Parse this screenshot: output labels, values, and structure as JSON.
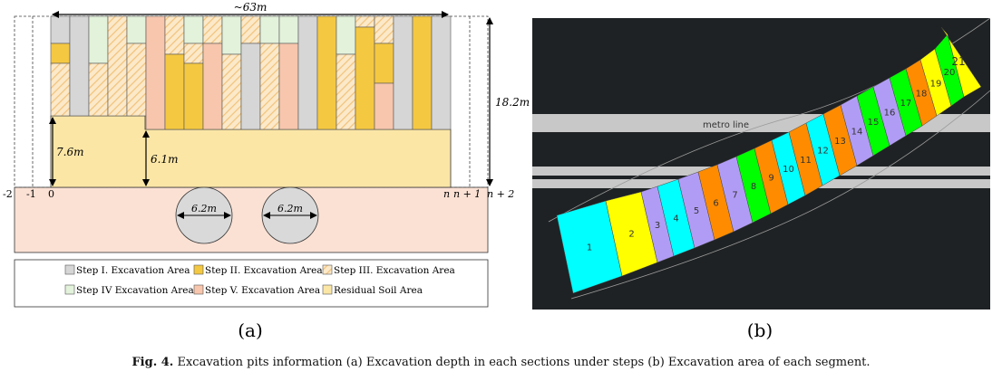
{
  "panel_a": {
    "label": "(a)",
    "width_label": "~63m",
    "height_label": "18.2m",
    "depth_left_label": "7.6m",
    "depth_right_label": "6.1m",
    "tunnel_labels": [
      "6.2m",
      "6.2m"
    ],
    "section_labels": [
      "-2",
      "-1",
      "0",
      "n",
      "n + 1",
      "n + 2"
    ],
    "legend": [
      {
        "label": "Step I. Excavation Area",
        "color": "#d6d6d6",
        "pattern": "solid"
      },
      {
        "label": "Step II. Excavation Area",
        "color": "#f5c842",
        "pattern": "solid"
      },
      {
        "label": "Step III. Excavation Area",
        "color": "#f7dcb0",
        "pattern": "hatch"
      },
      {
        "label": "Step IV Excavation Area",
        "color": "#e3f2da",
        "pattern": "solid"
      },
      {
        "label": "Step V. Excavation Area",
        "color": "#f7c6ad",
        "pattern": "solid"
      },
      {
        "label": "Residual Soil Area",
        "color": "#fbe6a6",
        "pattern": "solid"
      }
    ],
    "colors": {
      "residual": "#fbe6a6",
      "soil": "#fbe1d4",
      "tunnel": "#d9d9d9"
    }
  },
  "panel_b": {
    "label": "(b)",
    "metro_label": "metro line",
    "segments": [
      {
        "label": "1",
        "color": "#00ffff"
      },
      {
        "label": "2",
        "color": "#ffff00"
      },
      {
        "label": "3",
        "color": "#b19cf5"
      },
      {
        "label": "4",
        "color": "#00ffff"
      },
      {
        "label": "5",
        "color": "#b19cf5"
      },
      {
        "label": "6",
        "color": "#ff8c00"
      },
      {
        "label": "7",
        "color": "#b19cf5"
      },
      {
        "label": "8",
        "color": "#00ff00"
      },
      {
        "label": "9",
        "color": "#ff8c00"
      },
      {
        "label": "10",
        "color": "#00ffff"
      },
      {
        "label": "11",
        "color": "#ff8c00"
      },
      {
        "label": "12",
        "color": "#00ffff"
      },
      {
        "label": "13",
        "color": "#ff8c00"
      },
      {
        "label": "14",
        "color": "#b19cf5"
      },
      {
        "label": "15",
        "color": "#00ff00"
      },
      {
        "label": "16",
        "color": "#b19cf5"
      },
      {
        "label": "17",
        "color": "#00ff00"
      },
      {
        "label": "18",
        "color": "#ff8c00"
      },
      {
        "label": "19",
        "color": "#ffff00"
      },
      {
        "label": "20",
        "color": "#00ff00"
      },
      {
        "label": "21",
        "color": "#ffff00"
      }
    ],
    "colors": {
      "background": "#1f2224",
      "road": "#c8c8c8"
    }
  },
  "caption": {
    "prefix": "Fig. 4.",
    "text": "Excavation pits information (a) Excavation depth in each sections under steps (b) Excavation area of each segment."
  }
}
